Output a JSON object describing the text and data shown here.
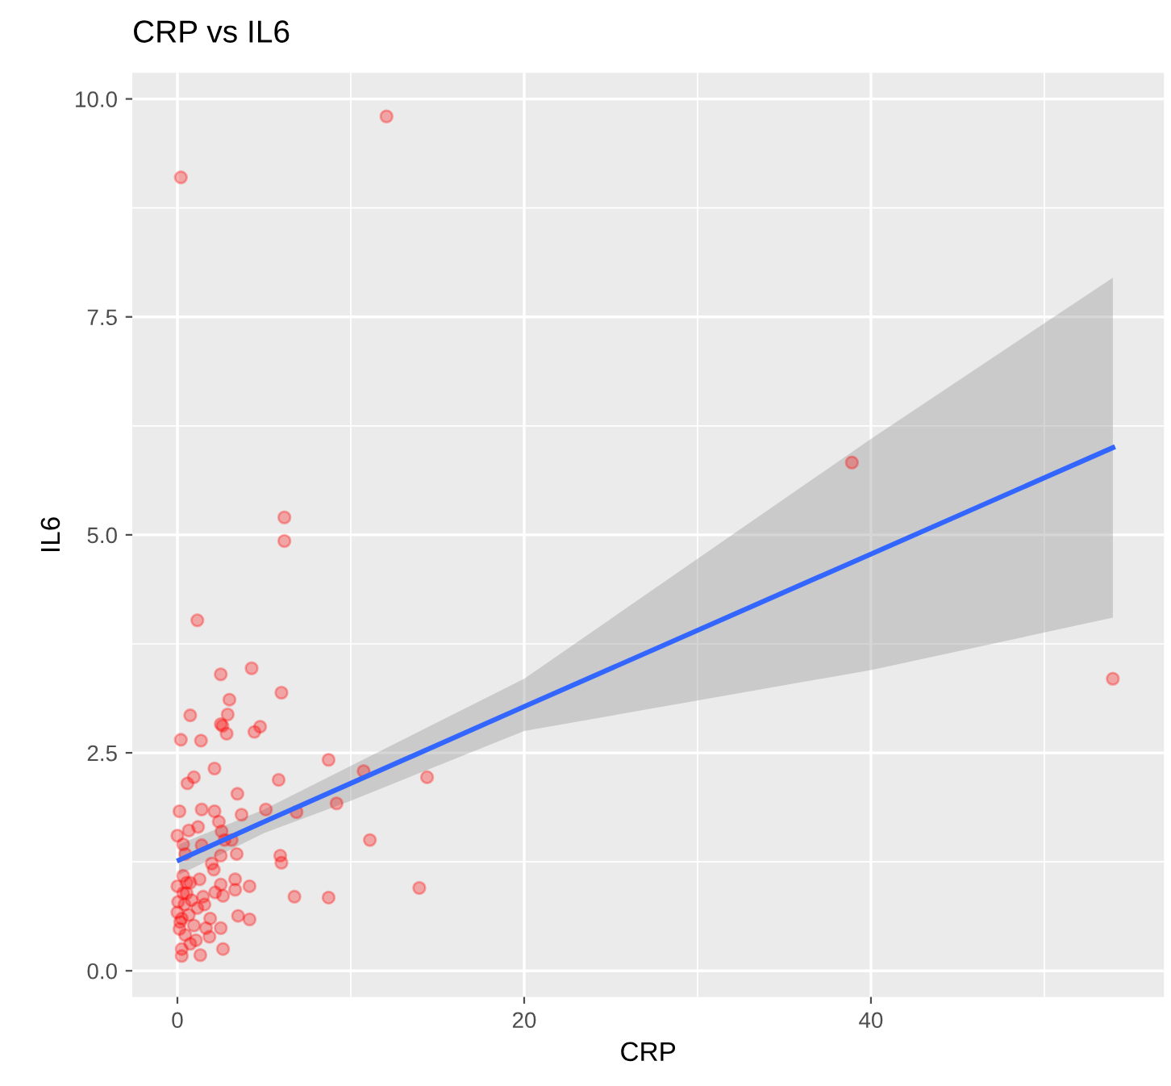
{
  "chart_data": {
    "type": "scatter",
    "title": "CRP vs IL6",
    "xlabel": "CRP",
    "ylabel": "IL6",
    "xlim": [
      -2.6,
      56.9
    ],
    "ylim": [
      -0.3,
      10.3
    ],
    "xticks": [
      0,
      20,
      40
    ],
    "yticks": [
      {
        "value": 0,
        "label": "0.0"
      },
      {
        "value": 2.5,
        "label": "2.5"
      },
      {
        "value": 5,
        "label": "5.0"
      },
      {
        "value": 7.5,
        "label": "7.5"
      },
      {
        "value": 10,
        "label": "10.0"
      }
    ],
    "grid": true,
    "legend": false,
    "series": [
      {
        "marker": "circle",
        "color": "#ff0000",
        "x": [
          12.06,
          0.2,
          38.9,
          53.95,
          6.17,
          6.17,
          1.15,
          4.28,
          2.5,
          6.0,
          3.0,
          0.74,
          2.9,
          2.5,
          2.6,
          4.77,
          4.44,
          2.84,
          0.2,
          1.36,
          8.72,
          10.74,
          2.14,
          14.4,
          0.95,
          0.58,
          5.84,
          3.46,
          9.18,
          0.12,
          1.4,
          2.14,
          5.1,
          6.87,
          3.7,
          2.39,
          0.66,
          1.19,
          2.55,
          0,
          2.72,
          11.1,
          0.33,
          1.4,
          3.13,
          3.42,
          5.93,
          6.0,
          0.45,
          1.98,
          2.1,
          2.5,
          0.33,
          0,
          0.74,
          1.28,
          3.33,
          4.16,
          13.95,
          2.5,
          3.33,
          2.18,
          2.63,
          6.75,
          8.72,
          0.53,
          1.48,
          0.04,
          0.41,
          0,
          1.15,
          3.5,
          4.16,
          0.25,
          1.89,
          0.95,
          1.65,
          2.5,
          0.12,
          0.45,
          1.85,
          1.07,
          2.63,
          0.25,
          1.32,
          0.25,
          0.66,
          0.16,
          0.74,
          0.82,
          1.56,
          0.33,
          0.53
        ],
        "values": [
          9.8,
          9.1,
          5.83,
          3.35,
          5.2,
          4.93,
          4.02,
          3.47,
          3.4,
          3.19,
          3.11,
          2.93,
          2.94,
          2.83,
          2.81,
          2.8,
          2.74,
          2.72,
          2.65,
          2.64,
          2.42,
          2.29,
          2.32,
          2.22,
          2.22,
          2.15,
          2.19,
          2.03,
          1.92,
          1.83,
          1.85,
          1.83,
          1.85,
          1.82,
          1.79,
          1.71,
          1.61,
          1.65,
          1.6,
          1.55,
          1.5,
          1.5,
          1.45,
          1.44,
          1.5,
          1.34,
          1.32,
          1.24,
          1.34,
          1.23,
          1.16,
          1.32,
          1.09,
          0.97,
          1.01,
          1.05,
          1.05,
          0.97,
          0.95,
          0.99,
          0.93,
          0.9,
          0.86,
          0.85,
          0.84,
          0.89,
          0.85,
          0.79,
          0.76,
          0.67,
          0.72,
          0.63,
          0.59,
          0.6,
          0.6,
          0.52,
          0.49,
          0.49,
          0.48,
          0.41,
          0.39,
          0.35,
          0.25,
          0.25,
          0.18,
          0.17,
          0.64,
          0.56,
          0.31,
          0.81,
          0.76,
          0.89,
          1.01
        ]
      },
      {
        "type": "line",
        "marker": "none",
        "color": "#3366ff",
        "x": [
          0.1,
          5,
          10,
          20,
          40,
          53.95
        ],
        "values": [
          1.27,
          1.71,
          2.15,
          3.03,
          4.78,
          6.0
        ],
        "lower": [
          1.1,
          1.58,
          1.95,
          2.75,
          3.45,
          4.05
        ],
        "upper": [
          1.45,
          1.85,
          2.35,
          3.35,
          6.1,
          7.95
        ]
      }
    ]
  }
}
